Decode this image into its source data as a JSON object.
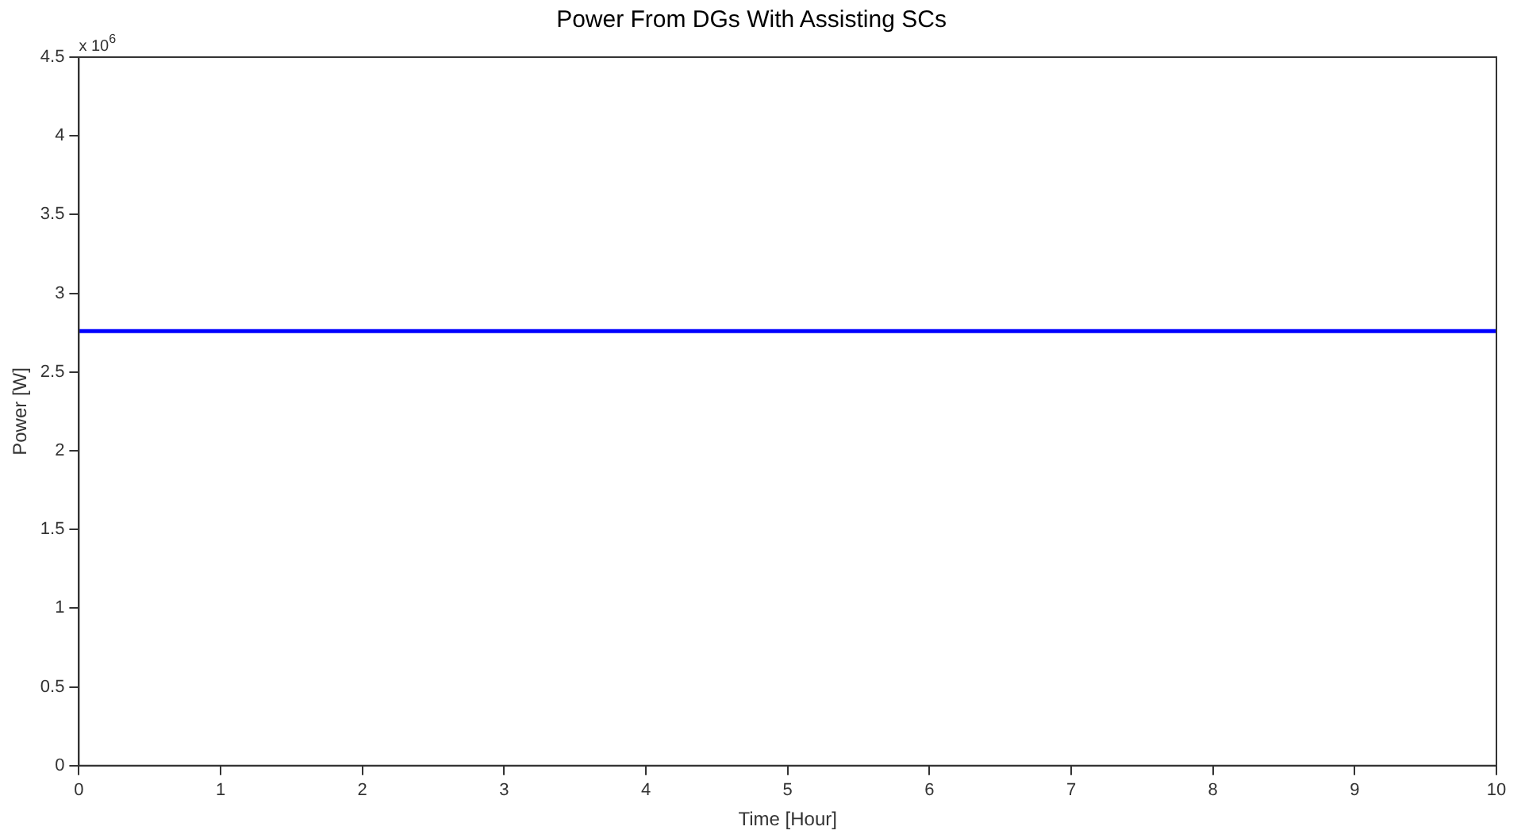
{
  "chart_data": {
    "type": "line",
    "title": "Power From DGs With Assisting SCs",
    "xlabel": "Time [Hour]",
    "ylabel": "Power [W]",
    "annotations": [
      "x 10$^{6}$"
    ],
    "x": [
      0,
      10
    ],
    "series": [
      {
        "color": "#0000ff",
        "values": [
          2.76,
          2.76
        ]
      }
    ],
    "xlim": [
      0,
      10
    ],
    "xticks": [
      0,
      1,
      2,
      3,
      4,
      5,
      6,
      7,
      8,
      9,
      10
    ],
    "ylim": [
      0,
      4.5
    ],
    "yticks": [
      0,
      0.5,
      1,
      1.5,
      2,
      2.5,
      3,
      3.5,
      4,
      4.5
    ],
    "grid": false,
    "legend": false,
    "marker": "none",
    "line_style": "solid"
  }
}
